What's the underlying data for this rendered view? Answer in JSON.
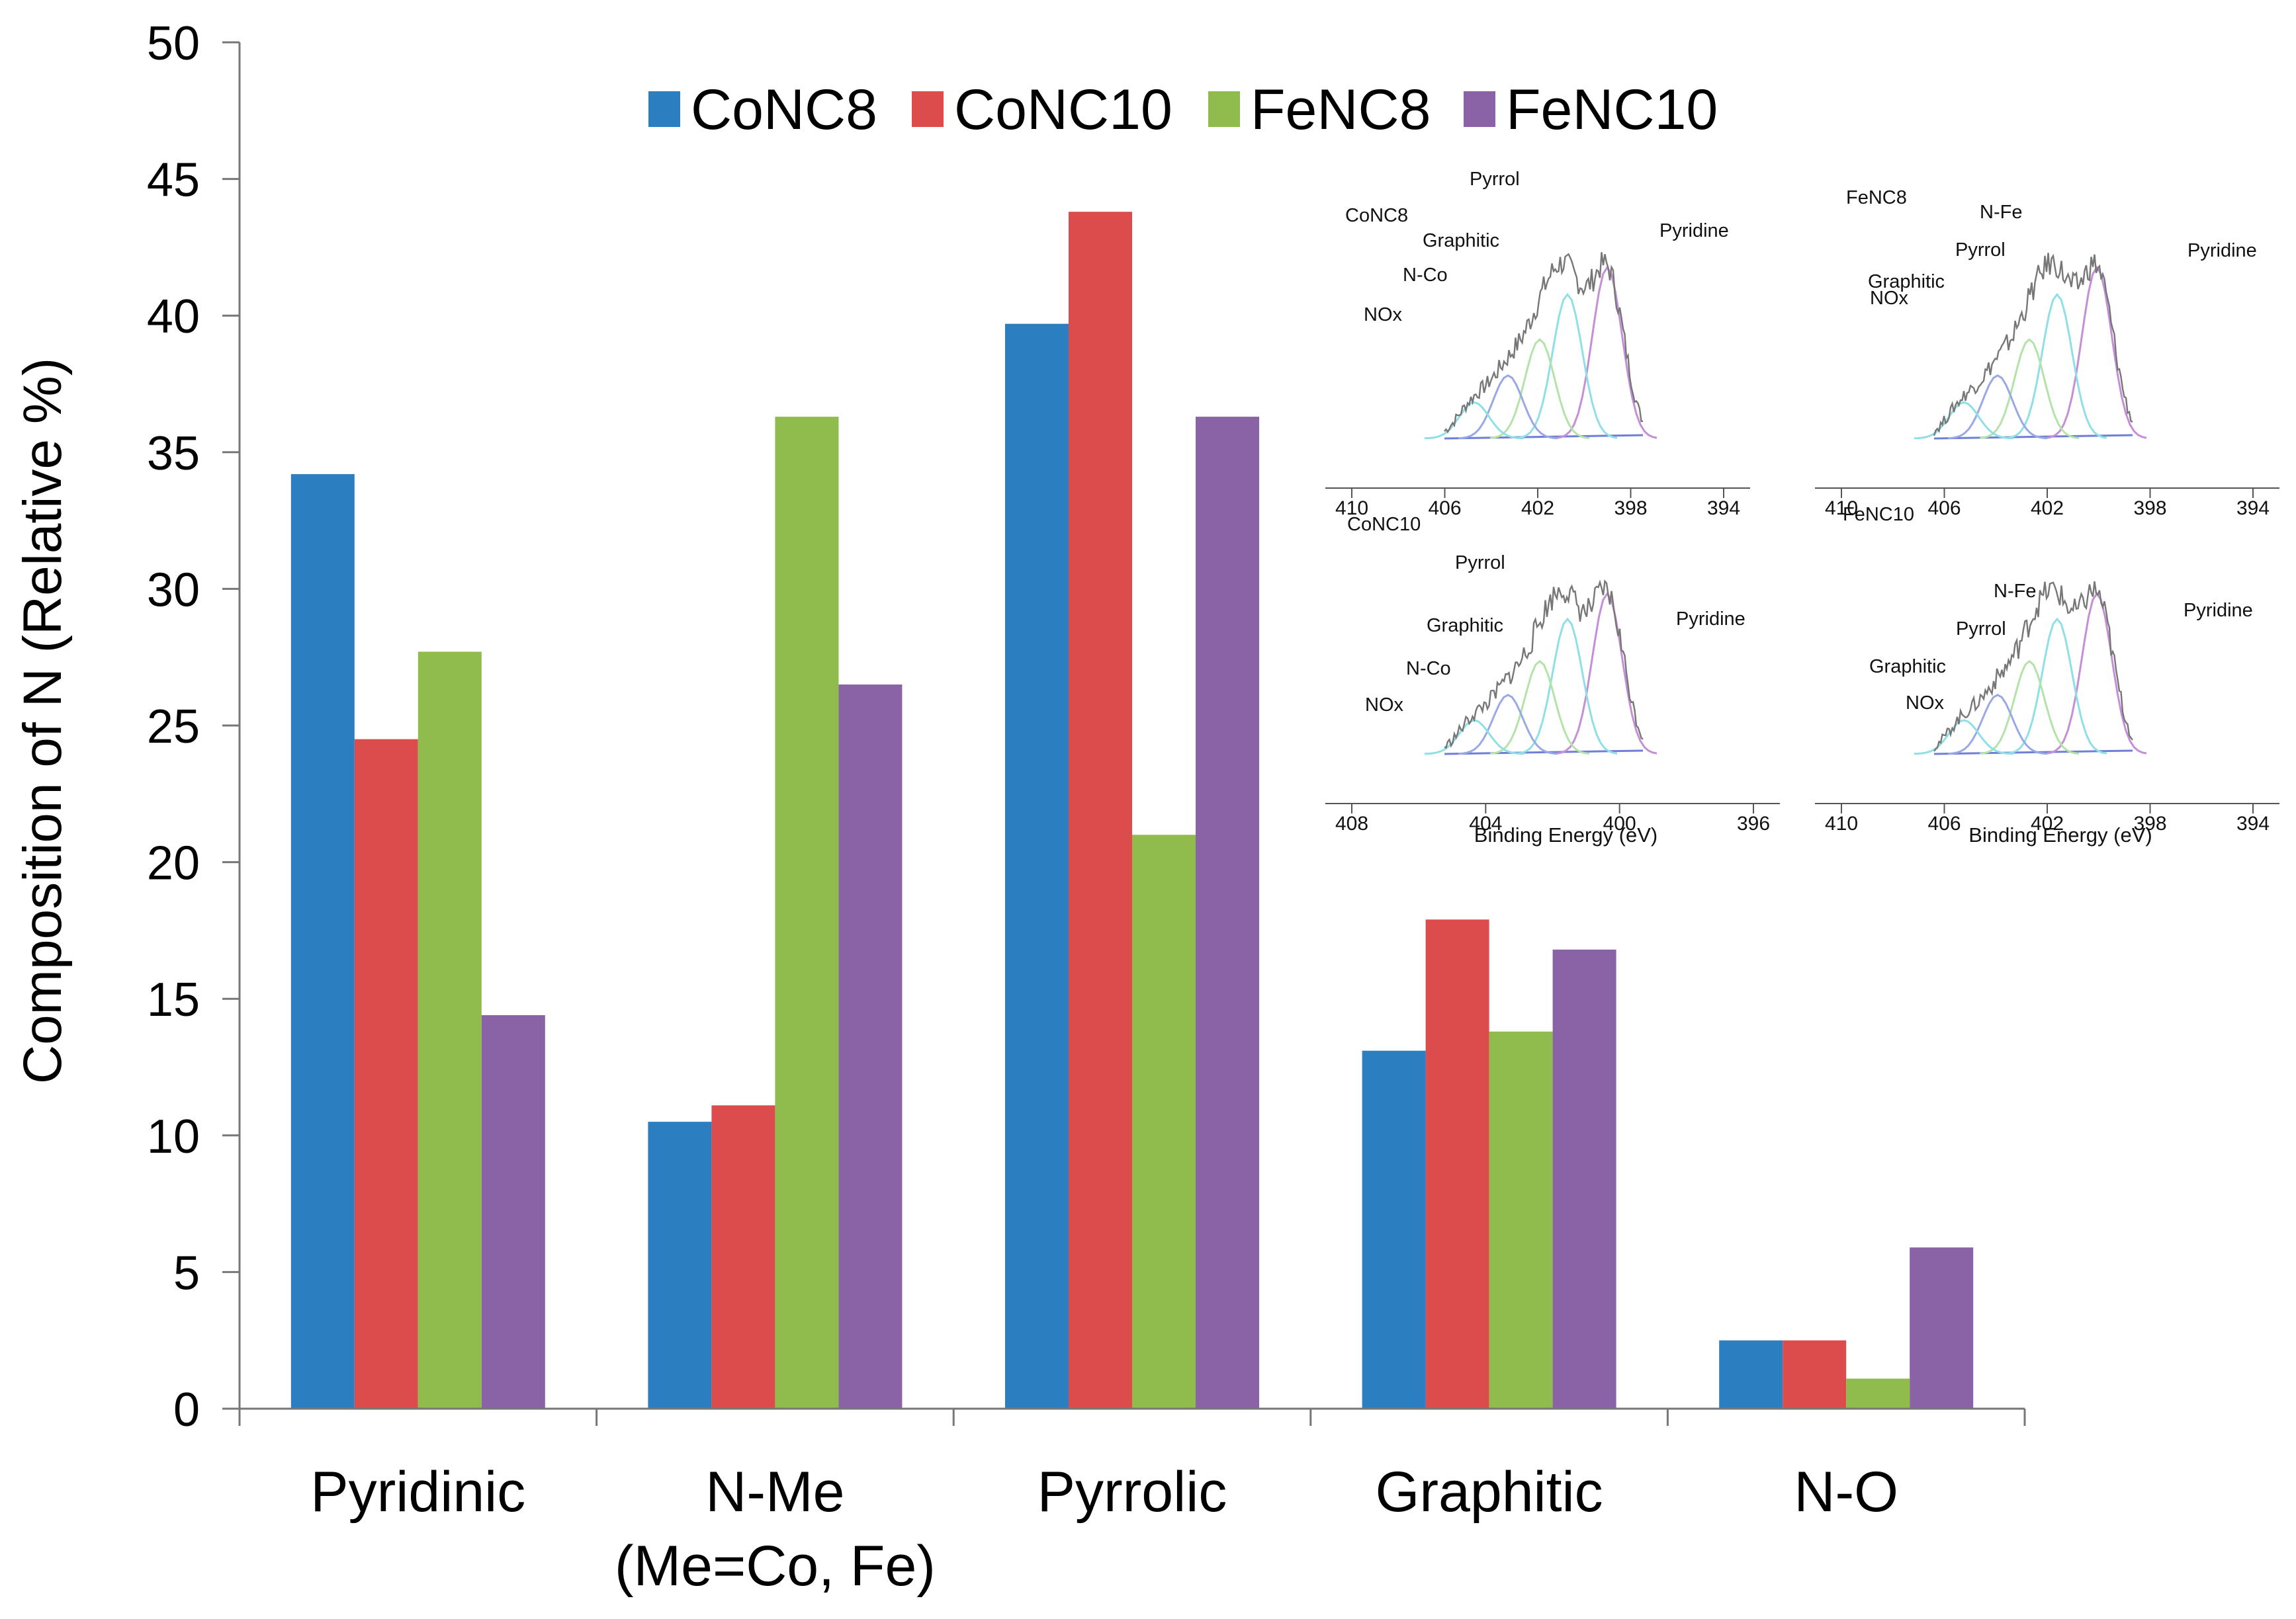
{
  "chart_data": {
    "type": "bar",
    "title": "",
    "xlabel": "",
    "ylabel": "Composition of N (Relative %)",
    "ylim": [
      0,
      50
    ],
    "yticks": [
      0,
      5,
      10,
      15,
      20,
      25,
      30,
      35,
      40,
      45,
      50
    ],
    "grid": false,
    "legend_position": "top",
    "categories": [
      [
        "Pyridinic"
      ],
      [
        "N-Me",
        "(Me=Co, Fe)"
      ],
      [
        "Pyrrolic"
      ],
      [
        "Graphitic"
      ],
      [
        "N-O"
      ]
    ],
    "series": [
      {
        "name": "CoNC8",
        "color": "#2b7fc1",
        "values": [
          34.2,
          10.5,
          39.7,
          13.1,
          2.5
        ]
      },
      {
        "name": "CoNC10",
        "color": "#dc4c4c",
        "values": [
          24.5,
          11.1,
          43.8,
          17.9,
          2.5
        ]
      },
      {
        "name": "FeNC8",
        "color": "#8fbc4d",
        "values": [
          27.7,
          36.3,
          21.0,
          13.8,
          1.1
        ]
      },
      {
        "name": "FeNC10",
        "color": "#8a62a6",
        "values": [
          14.4,
          26.5,
          36.3,
          16.8,
          5.9
        ]
      }
    ],
    "insets": [
      {
        "sample": "CoNC8",
        "xticks": [
          "410",
          "406",
          "402",
          "398",
          "394"
        ],
        "peaks": [
          "Pyrrol",
          "Graphitic",
          "N-Co",
          "NOx",
          "Pyridine"
        ],
        "xlabel": ""
      },
      {
        "sample": "FeNC8",
        "xticks": [
          "410",
          "406",
          "402",
          "398",
          "394"
        ],
        "peaks": [
          "N-Fe",
          "Pyrrol",
          "Graphitic",
          "NOx",
          "Pyridine"
        ],
        "xlabel": ""
      },
      {
        "sample": "CoNC10",
        "xticks": [
          "408",
          "404",
          "400",
          "396"
        ],
        "peaks": [
          "Pyrrol",
          "Graphitic",
          "N-Co",
          "NOx",
          "Pyridine"
        ],
        "xlabel": "Binding Energy (eV)"
      },
      {
        "sample": "FeNC10",
        "xticks": [
          "410",
          "406",
          "402",
          "398",
          "394"
        ],
        "peaks": [
          "N-Fe",
          "Pyrrol",
          "Graphitic",
          "NOx",
          "Pyridine"
        ],
        "xlabel": "Binding Energy (eV)"
      }
    ]
  }
}
